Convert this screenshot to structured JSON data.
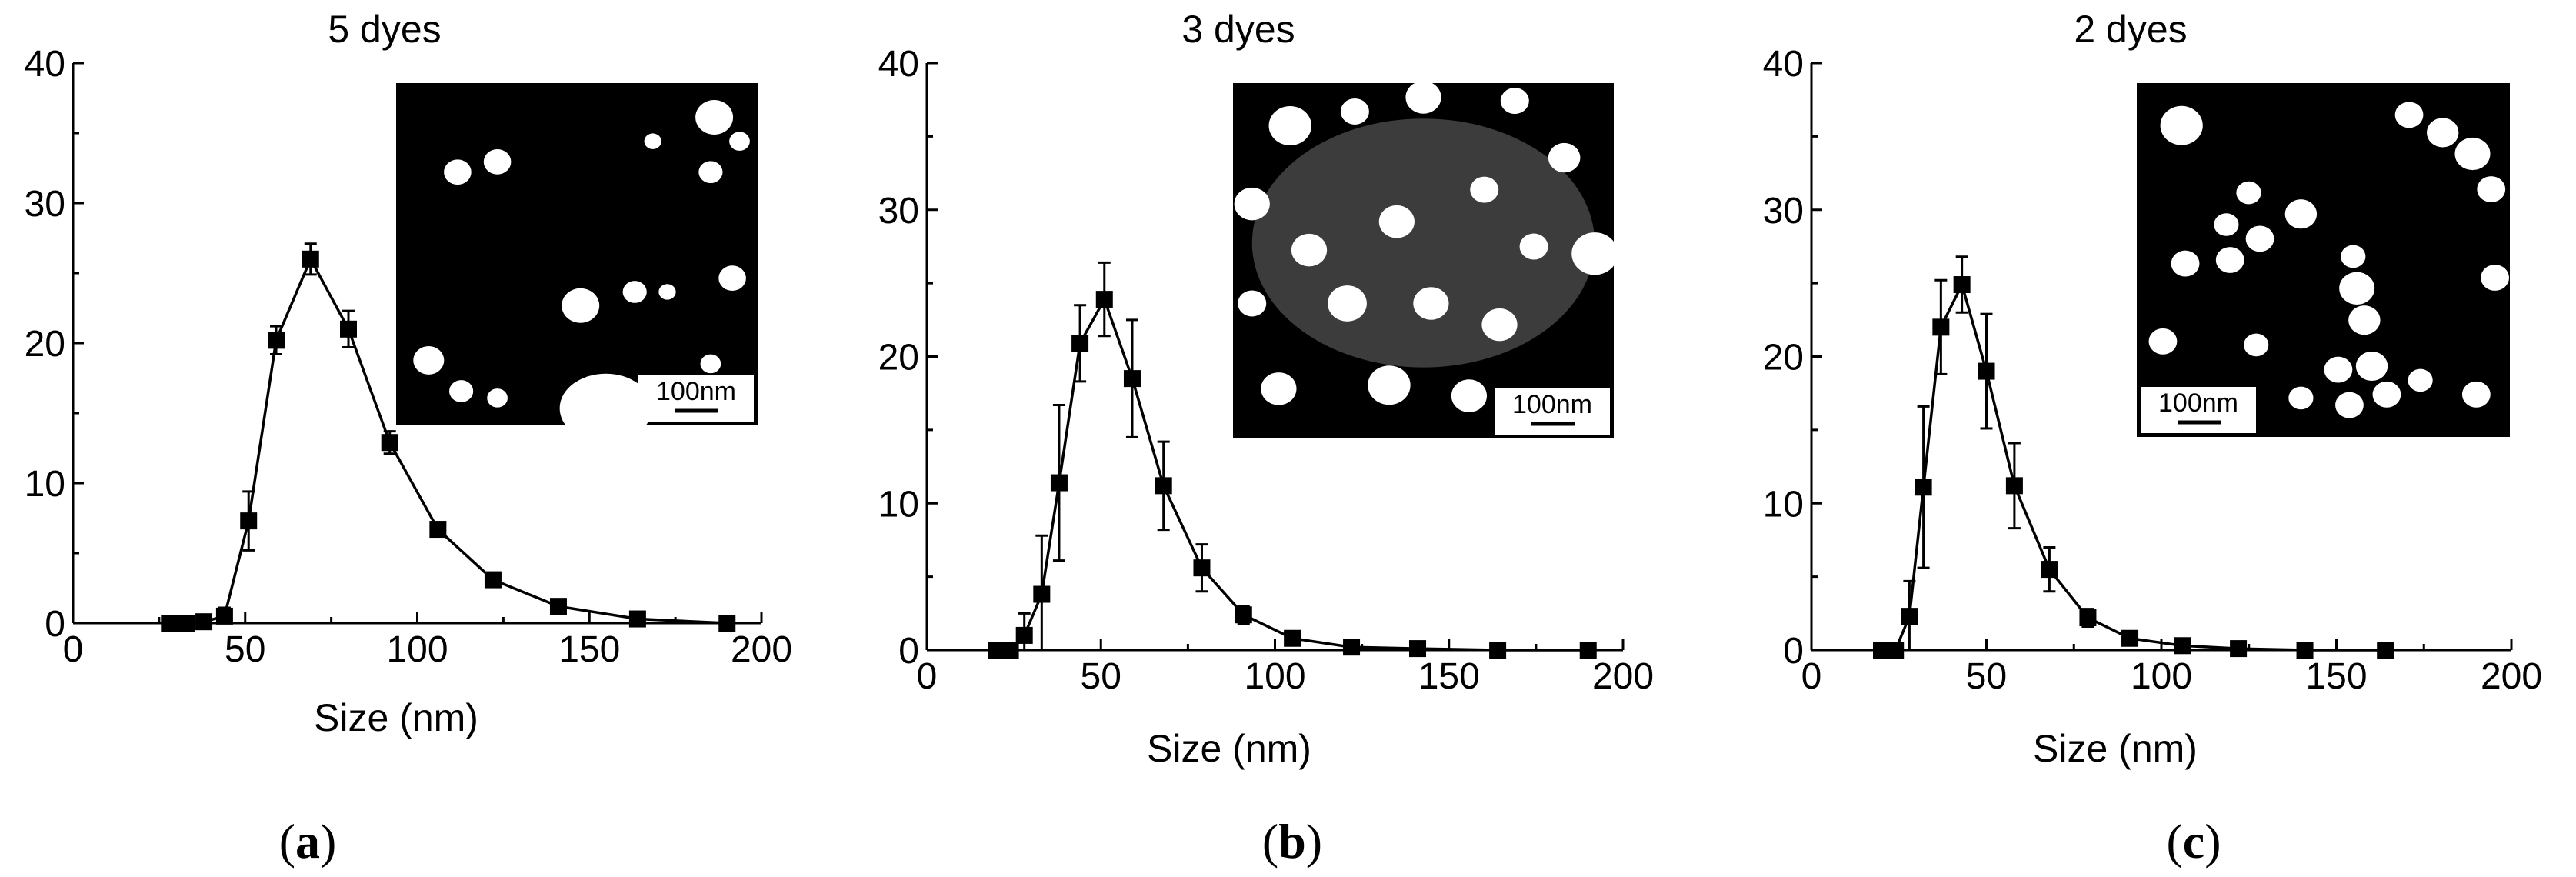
{
  "figure": {
    "panels": [
      {
        "id": "a",
        "title": "5 dyes",
        "xlabel": "Size (nm)",
        "label_open": "(",
        "label_letter": "a",
        "label_close": ")",
        "scale_label": "100nm"
      },
      {
        "id": "b",
        "title": "3 dyes",
        "xlabel": "Size (nm)",
        "label_open": "(",
        "label_letter": "b",
        "label_close": ")",
        "scale_label": "100nm"
      },
      {
        "id": "c",
        "title": "2 dyes",
        "xlabel": "Size (nm)",
        "label_open": "(",
        "label_letter": "c",
        "label_close": ")",
        "scale_label": "100nm"
      }
    ]
  },
  "chart_data": [
    {
      "type": "line",
      "title": "5 dyes",
      "xlabel": "Size (nm)",
      "ylabel": "",
      "xlim": [
        0,
        200
      ],
      "ylim": [
        0,
        40
      ],
      "xticks": [
        0,
        50,
        100,
        150,
        200
      ],
      "yticks": [
        0,
        10,
        20,
        30,
        40
      ],
      "grid": false,
      "marker": "square",
      "series": [
        {
          "x": [
            28,
            33,
            38,
            44,
            51,
            59,
            69,
            80,
            92,
            106,
            122,
            141,
            164,
            190
          ],
          "y": [
            0,
            0,
            0.1,
            0.5,
            7.3,
            20.2,
            26.0,
            21.0,
            12.9,
            6.7,
            3.1,
            1.2,
            0.3,
            0
          ],
          "err": [
            0,
            0,
            0,
            0.6,
            2.1,
            1.0,
            1.1,
            1.3,
            0.8,
            0.4,
            0.3,
            0.3,
            0.2,
            0
          ]
        }
      ],
      "inset": "AFM image",
      "scale_bar": "100nm"
    },
    {
      "type": "line",
      "title": "3 dyes",
      "xlabel": "Size (nm)",
      "ylabel": "",
      "xlim": [
        0,
        200
      ],
      "ylim": [
        0,
        40
      ],
      "xticks": [
        0,
        50,
        100,
        150,
        200
      ],
      "yticks": [
        0,
        10,
        20,
        30,
        40
      ],
      "grid": false,
      "marker": "square",
      "series": [
        {
          "x": [
            20,
            24,
            28,
            33,
            38,
            44,
            51,
            59,
            68,
            79,
            91,
            105,
            122,
            141,
            164,
            190
          ],
          "y": [
            0,
            0,
            1.0,
            3.8,
            11.4,
            20.9,
            23.9,
            18.5,
            11.2,
            5.6,
            2.4,
            0.8,
            0.2,
            0.1,
            0,
            0
          ],
          "err": [
            0,
            0,
            1.5,
            4.0,
            5.3,
            2.6,
            2.5,
            4.0,
            3.0,
            1.6,
            0.6,
            0.3,
            0.1,
            0,
            0,
            0
          ]
        }
      ],
      "inset": "AFM image",
      "scale_bar": "100nm"
    },
    {
      "type": "line",
      "title": "2 dyes",
      "xlabel": "Size (nm)",
      "ylabel": "",
      "xlim": [
        0,
        200
      ],
      "ylim": [
        0,
        40
      ],
      "xticks": [
        0,
        50,
        100,
        150,
        200
      ],
      "yticks": [
        0,
        10,
        20,
        30,
        40
      ],
      "grid": false,
      "marker": "square",
      "series": [
        {
          "x": [
            20,
            24,
            28,
            32,
            37,
            43,
            50,
            58,
            68,
            79,
            91,
            106,
            122,
            141,
            164
          ],
          "y": [
            0,
            0,
            2.3,
            11.1,
            22.0,
            24.9,
            19.0,
            11.2,
            5.5,
            2.2,
            0.8,
            0.3,
            0.1,
            0,
            0
          ],
          "err": [
            0,
            0,
            2.4,
            5.5,
            3.2,
            1.9,
            3.9,
            2.9,
            1.5,
            0.6,
            0.3,
            0.1,
            0,
            0,
            0
          ]
        }
      ],
      "inset": "AFM image",
      "scale_bar": "100nm"
    }
  ]
}
